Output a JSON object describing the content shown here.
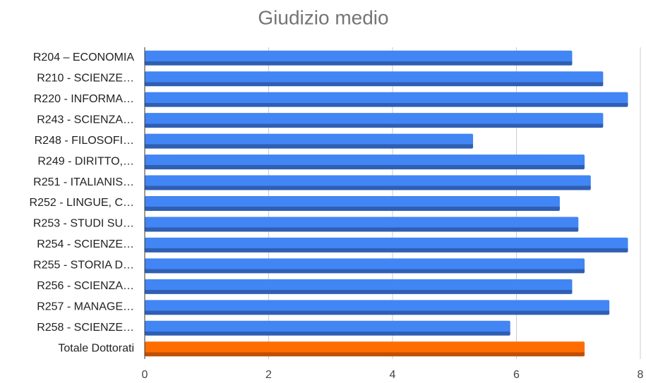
{
  "chart_data": {
    "type": "bar",
    "orientation": "horizontal",
    "title": "Giudizio medio",
    "categories": [
      "R204 – ECONOMIA",
      "R210 - SCIENZE…",
      "R220 - INFORMA…",
      "R243 - SCIENZA…",
      "R248 - FILOSOFI…",
      "R249 - DIRITTO,…",
      "R251 - ITALIANIS…",
      "R252 - LINGUE, C…",
      "R253 - STUDI SU…",
      "R254 - SCIENZE…",
      "R255 - STORIA D…",
      "R256 - SCIENZA…",
      "R257 - MANAGE…",
      "R258 - SCIENZE…",
      "Totale Dottorati"
    ],
    "values": [
      6.9,
      7.4,
      7.8,
      7.4,
      5.3,
      7.1,
      7.2,
      6.7,
      7.0,
      7.8,
      7.1,
      6.9,
      7.5,
      5.9,
      7.1
    ],
    "colors": [
      "#4285f4",
      "#4285f4",
      "#4285f4",
      "#4285f4",
      "#4285f4",
      "#4285f4",
      "#4285f4",
      "#4285f4",
      "#4285f4",
      "#4285f4",
      "#4285f4",
      "#4285f4",
      "#4285f4",
      "#4285f4",
      "#ff6d01"
    ],
    "xlim": [
      0,
      8
    ],
    "xticks": [
      0,
      2,
      4,
      6,
      8
    ],
    "grid": true
  }
}
